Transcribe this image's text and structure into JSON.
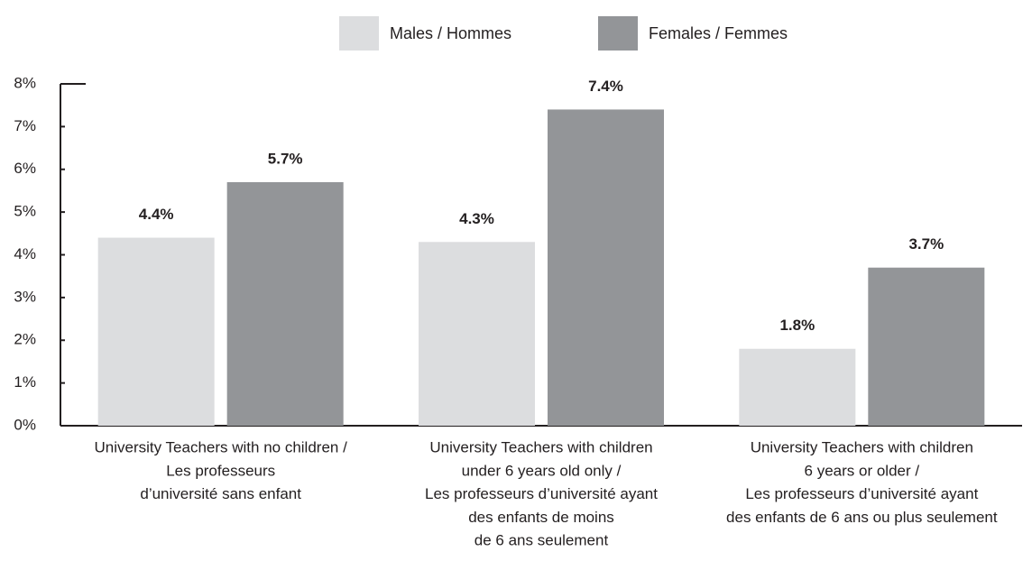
{
  "chart_data": {
    "type": "bar",
    "categories": [
      [
        "University Teachers with no children /",
        "Les professeurs",
        "d’université sans enfant"
      ],
      [
        "University Teachers with children",
        "under 6 years old only /",
        "Les professeurs d’université ayant",
        "des enfants de moins",
        "de 6 ans seulement"
      ],
      [
        "University Teachers with children",
        "6 years or older /",
        "Les professeurs d’université ayant",
        "des enfants de 6 ans ou plus seulement"
      ]
    ],
    "series": [
      {
        "name": "Males / Hommes",
        "color": "#dcdddf",
        "values": [
          4.4,
          4.3,
          1.8
        ],
        "value_labels": [
          "4.4%",
          "4.3%",
          "1.8%"
        ]
      },
      {
        "name": "Females / Femmes",
        "color": "#939598",
        "values": [
          5.7,
          7.4,
          3.7
        ],
        "value_labels": [
          "5.7%",
          "7.4%",
          "3.7%"
        ]
      }
    ],
    "ylim": [
      0,
      8
    ],
    "yticks": [
      {
        "value": 0,
        "label": "0%"
      },
      {
        "value": 1,
        "label": "1%"
      },
      {
        "value": 2,
        "label": "2%"
      },
      {
        "value": 3,
        "label": "3%"
      },
      {
        "value": 4,
        "label": "4%"
      },
      {
        "value": 5,
        "label": "5%"
      },
      {
        "value": 6,
        "label": "6%"
      },
      {
        "value": 7,
        "label": "7%"
      },
      {
        "value": 8,
        "label": "8%"
      }
    ],
    "legend": "top"
  }
}
